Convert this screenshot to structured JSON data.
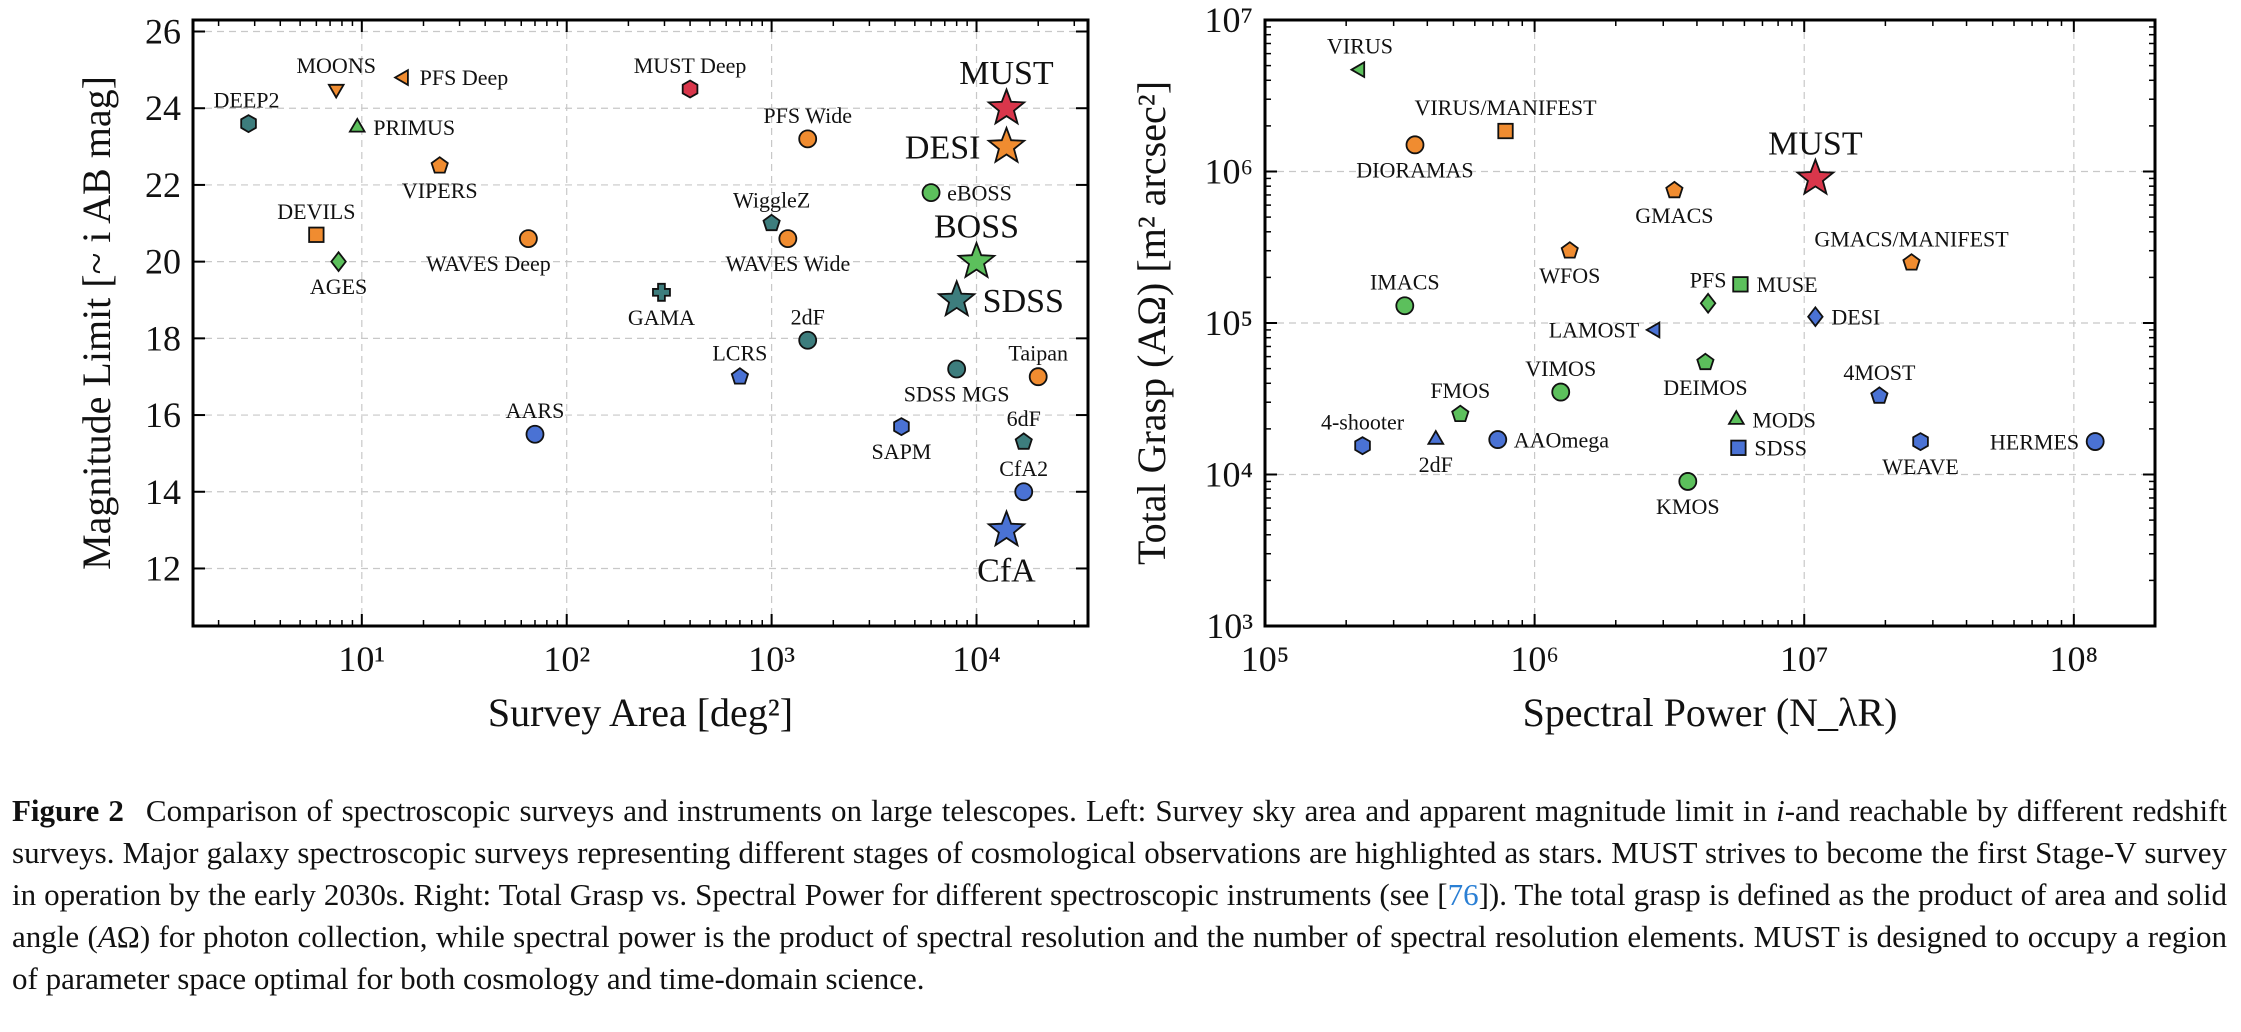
{
  "chart_data": [
    {
      "type": "scatter",
      "xlabel": "Survey Area [deg²]",
      "ylabel": "Magnitude Limit [~ i AB mag]",
      "xscale": "log",
      "xlim": [
        1.5,
        35000
      ],
      "ylim": [
        10.5,
        26.3
      ],
      "x_ticks": [
        10,
        100,
        1000,
        10000
      ],
      "x_tick_labels": [
        "10¹",
        "10²",
        "10³",
        "10⁴"
      ],
      "y_ticks": [
        12,
        14,
        16,
        18,
        20,
        22,
        24,
        26
      ],
      "y_tick_labels": [
        "12",
        "14",
        "16",
        "18",
        "20",
        "22",
        "24",
        "26"
      ],
      "grid": true,
      "points": [
        {
          "label": "DEEP2",
          "x": 2.8,
          "y": 23.6,
          "marker": "hexagon",
          "color": "#3d7d7d",
          "label_pos": "top-left"
        },
        {
          "label": "MOONS",
          "x": 7.5,
          "y": 24.5,
          "marker": "triangle-down",
          "color": "#f08c30",
          "label_pos": "top"
        },
        {
          "label": "PFS Deep",
          "x": 16,
          "y": 24.8,
          "marker": "triangle-left",
          "color": "#f08c30",
          "label_pos": "right"
        },
        {
          "label": "PRIMUS",
          "x": 9.5,
          "y": 23.5,
          "marker": "triangle-up",
          "color": "#5cc05c",
          "label_pos": "right"
        },
        {
          "label": "VIPERS",
          "x": 24,
          "y": 22.5,
          "marker": "pentagon",
          "color": "#f08c30",
          "label_pos": "bottom"
        },
        {
          "label": "DEVILS",
          "x": 6.0,
          "y": 20.7,
          "marker": "square",
          "color": "#f08c30",
          "label_pos": "top"
        },
        {
          "label": "AGES",
          "x": 7.7,
          "y": 20.0,
          "marker": "diamond",
          "color": "#5cc05c",
          "label_pos": "bottom"
        },
        {
          "label": "WAVES Deep",
          "x": 65,
          "y": 20.6,
          "marker": "circle",
          "color": "#f08c30",
          "label_pos": "bottom-left"
        },
        {
          "label": "AARS",
          "x": 70,
          "y": 15.5,
          "marker": "circle",
          "color": "#4a72d4",
          "label_pos": "top"
        },
        {
          "label": "GAMA",
          "x": 290,
          "y": 19.2,
          "marker": "plus",
          "color": "#3d7d7d",
          "label_pos": "bottom"
        },
        {
          "label": "MUST Deep",
          "x": 400,
          "y": 24.5,
          "marker": "hexagon",
          "color": "#d9364b",
          "label_pos": "top"
        },
        {
          "label": "WiggleZ",
          "x": 1000,
          "y": 21.0,
          "marker": "pentagon",
          "color": "#3d7d7d",
          "label_pos": "top"
        },
        {
          "label": "WAVES Wide",
          "x": 1200,
          "y": 20.6,
          "marker": "circle",
          "color": "#f08c30",
          "label_pos": "bottom"
        },
        {
          "label": "PFS Wide",
          "x": 1500,
          "y": 23.2,
          "marker": "circle",
          "color": "#f08c30",
          "label_pos": "top"
        },
        {
          "label": "LCRS",
          "x": 700,
          "y": 17.0,
          "marker": "pentagon",
          "color": "#4a72d4",
          "label_pos": "top"
        },
        {
          "label": "2dF",
          "x": 1500,
          "y": 17.95,
          "marker": "circle",
          "color": "#3d7d7d",
          "label_pos": "top"
        },
        {
          "label": "eBOSS",
          "x": 6000,
          "y": 21.8,
          "marker": "circle",
          "color": "#5cc05c",
          "label_pos": "right"
        },
        {
          "label": "SDSS MGS",
          "x": 8000,
          "y": 17.2,
          "marker": "circle",
          "color": "#3d7d7d",
          "label_pos": "bottom"
        },
        {
          "label": "SAPM",
          "x": 4300,
          "y": 15.7,
          "marker": "hexagon",
          "color": "#4a72d4",
          "label_pos": "bottom"
        },
        {
          "label": "Taipan",
          "x": 20000,
          "y": 17.0,
          "marker": "circle",
          "color": "#f08c30",
          "label_pos": "top"
        },
        {
          "label": "6dF",
          "x": 17000,
          "y": 15.3,
          "marker": "pentagon",
          "color": "#3d7d7d",
          "label_pos": "top"
        },
        {
          "label": "CfA2",
          "x": 17000,
          "y": 14.0,
          "marker": "circle",
          "color": "#4a72d4",
          "label_pos": "top"
        },
        {
          "label": "MUST",
          "x": 14000,
          "y": 24.0,
          "marker": "star",
          "color": "#d9364b",
          "label_pos": "top",
          "large_label": true
        },
        {
          "label": "DESI",
          "x": 14000,
          "y": 23.0,
          "marker": "star",
          "color": "#f08c30",
          "label_pos": "left",
          "large_label": true
        },
        {
          "label": "BOSS",
          "x": 10000,
          "y": 20.0,
          "marker": "star",
          "color": "#5cc05c",
          "label_pos": "top",
          "large_label": true
        },
        {
          "label": "SDSS",
          "x": 8000,
          "y": 19.0,
          "marker": "star",
          "color": "#3d7d7d",
          "label_pos": "right",
          "large_label": true
        },
        {
          "label": "CfA",
          "x": 14000,
          "y": 13.0,
          "marker": "star",
          "color": "#4a72d4",
          "label_pos": "bottom",
          "large_label": true
        }
      ]
    },
    {
      "type": "scatter",
      "xlabel": "Spectral Power (N_λR)",
      "ylabel": "Total Grasp (AΩ) [m² arcsec²]",
      "xscale": "log",
      "yscale": "log",
      "xlim": [
        100000,
        200000000
      ],
      "ylim": [
        1000,
        10000000
      ],
      "x_ticks": [
        100000,
        1000000,
        10000000,
        100000000
      ],
      "x_tick_labels": [
        "10⁵",
        "10⁶",
        "10⁷",
        "10⁸"
      ],
      "y_ticks": [
        1000,
        10000,
        100000,
        1000000,
        10000000
      ],
      "y_tick_labels": [
        "10³",
        "10⁴",
        "10⁵",
        "10⁶",
        "10⁷"
      ],
      "grid": true,
      "points": [
        {
          "label": "VIRUS",
          "x": 225000,
          "y": 4700000,
          "marker": "triangle-left",
          "color": "#5cc05c",
          "label_pos": "top"
        },
        {
          "label": "VIRUS/MANIFEST",
          "x": 780000,
          "y": 1850000,
          "marker": "square",
          "color": "#f08c30",
          "label_pos": "top"
        },
        {
          "label": "DIORAMAS",
          "x": 360000,
          "y": 1500000,
          "marker": "circle",
          "color": "#f08c30",
          "label_pos": "bottom"
        },
        {
          "label": "MUST",
          "x": 11000000,
          "y": 900000,
          "marker": "star",
          "color": "#d9364b",
          "label_pos": "top",
          "large_label": true
        },
        {
          "label": "GMACS",
          "x": 3300000,
          "y": 750000,
          "marker": "pentagon",
          "color": "#f08c30",
          "label_pos": "bottom"
        },
        {
          "label": "WFOS",
          "x": 1350000,
          "y": 300000,
          "marker": "pentagon",
          "color": "#f08c30",
          "label_pos": "bottom"
        },
        {
          "label": "GMACS/MANIFEST",
          "x": 25000000,
          "y": 250000,
          "marker": "pentagon",
          "color": "#f08c30",
          "label_pos": "top"
        },
        {
          "label": "IMACS",
          "x": 330000,
          "y": 130000,
          "marker": "circle",
          "color": "#5cc05c",
          "label_pos": "top"
        },
        {
          "label": "PFS",
          "x": 4400000,
          "y": 135000,
          "marker": "diamond",
          "color": "#5cc05c",
          "label_pos": "top"
        },
        {
          "label": "MUSE",
          "x": 5800000,
          "y": 180000,
          "marker": "square",
          "color": "#5cc05c",
          "label_pos": "right"
        },
        {
          "label": "DESI",
          "x": 11000000,
          "y": 110000,
          "marker": "diamond",
          "color": "#4a72d4",
          "label_pos": "right"
        },
        {
          "label": "LAMOST",
          "x": 2800000,
          "y": 90000,
          "marker": "triangle-left",
          "color": "#4a72d4",
          "label_pos": "left"
        },
        {
          "label": "VIMOS",
          "x": 1250000,
          "y": 35000,
          "marker": "circle",
          "color": "#5cc05c",
          "label_pos": "top"
        },
        {
          "label": "DEIMOS",
          "x": 4300000,
          "y": 55000,
          "marker": "pentagon",
          "color": "#5cc05c",
          "label_pos": "bottom"
        },
        {
          "label": "4MOST",
          "x": 19000000,
          "y": 33000,
          "marker": "pentagon",
          "color": "#4a72d4",
          "label_pos": "top"
        },
        {
          "label": "FMOS",
          "x": 530000,
          "y": 25000,
          "marker": "pentagon",
          "color": "#5cc05c",
          "label_pos": "top"
        },
        {
          "label": "MODS",
          "x": 5600000,
          "y": 23000,
          "marker": "triangle-up",
          "color": "#5cc05c",
          "label_pos": "right"
        },
        {
          "label": "4-shooter",
          "x": 230000,
          "y": 15500,
          "marker": "hexagon",
          "color": "#4a72d4",
          "label_pos": "top"
        },
        {
          "label": "2dF",
          "x": 430000,
          "y": 17000,
          "marker": "triangle-up",
          "color": "#4a72d4",
          "label_pos": "bottom"
        },
        {
          "label": "AAOmega",
          "x": 730000,
          "y": 17000,
          "marker": "circle",
          "color": "#4a72d4",
          "label_pos": "right"
        },
        {
          "label": "SDSS",
          "x": 5700000,
          "y": 15000,
          "marker": "square",
          "color": "#4a72d4",
          "label_pos": "right"
        },
        {
          "label": "KMOS",
          "x": 3700000,
          "y": 9000,
          "marker": "circle",
          "color": "#5cc05c",
          "label_pos": "bottom"
        },
        {
          "label": "WEAVE",
          "x": 27000000,
          "y": 16500,
          "marker": "hexagon",
          "color": "#4a72d4",
          "label_pos": "bottom"
        },
        {
          "label": "HERMES",
          "x": 120000000,
          "y": 16500,
          "marker": "circle",
          "color": "#4a72d4",
          "label_pos": "left"
        }
      ]
    }
  ],
  "caption": {
    "label": "Figure 2",
    "text_1": "Comparison of spectroscopic surveys and instruments on large telescopes. Left: Survey sky area and apparent magnitude limit in ",
    "text_1_italic": "i",
    "text_2": "-and reachable by different redshift surveys. Major galaxy spectroscopic surveys representing different stages of cosmological observations are highlighted as stars. MUST strives to become the first Stage-V survey in operation by the early 2030s. Right: Total Grasp vs. Spectral Power for different spectroscopic instruments (see [",
    "ref": "76",
    "text_3": "]). The total grasp is defined as the product of area and solid angle (",
    "text_3_italic": "A",
    "text_3b": "Ω) for photon collection, while spectral power is the product of spectral resolution and the number of spectral resolution elements. MUST is designed to occupy a region of parameter space optimal for both cosmology and time-domain science."
  }
}
